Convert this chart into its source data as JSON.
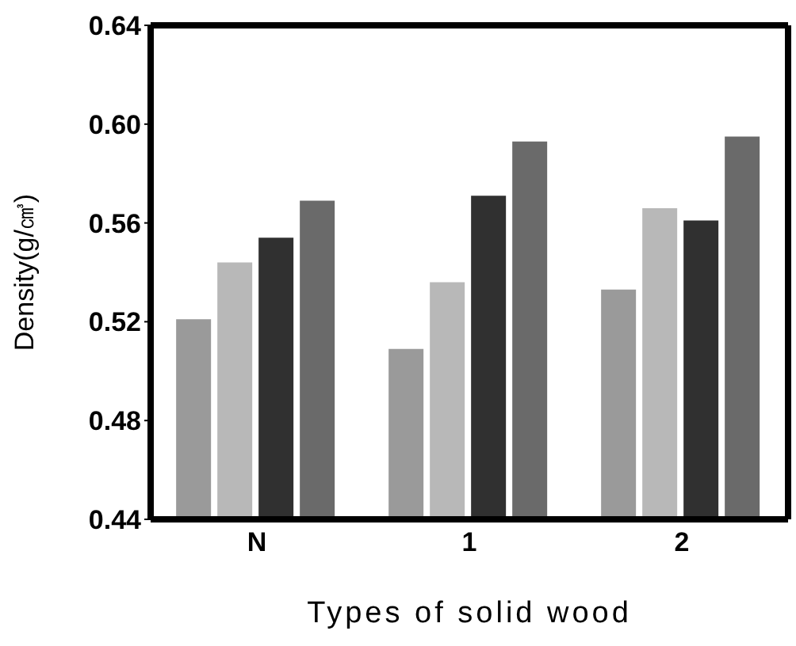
{
  "chart_data": {
    "type": "bar",
    "xlabel": "Types of solid wood",
    "ylabel": "Density(g/㎤)",
    "categories": [
      "N",
      "1",
      "2"
    ],
    "series": [
      {
        "color": "#9a9a9a",
        "values": [
          0.521,
          0.509,
          0.533
        ]
      },
      {
        "color": "#b8b8b8",
        "values": [
          0.544,
          0.536,
          0.566
        ]
      },
      {
        "color": "#303030",
        "values": [
          0.554,
          0.571,
          0.561
        ]
      },
      {
        "color": "#6a6a6a",
        "values": [
          0.569,
          0.593,
          0.595
        ]
      }
    ],
    "ylim": [
      0.44,
      0.64
    ],
    "yticks": [
      {
        "value": 0.44,
        "label": "0.44"
      },
      {
        "value": 0.48,
        "label": "0.48"
      },
      {
        "value": 0.52,
        "label": "0.52"
      },
      {
        "value": 0.56,
        "label": "0.56"
      },
      {
        "value": 0.6,
        "label": "0.60"
      },
      {
        "value": 0.64,
        "label": "0.64"
      }
    ],
    "grid": false,
    "legend": false
  }
}
